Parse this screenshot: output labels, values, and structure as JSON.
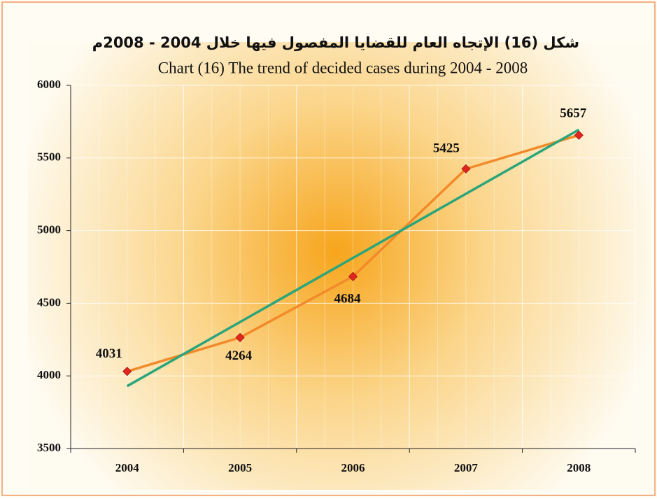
{
  "chart_data": {
    "type": "line",
    "title_ar": "شكل (16) الإتجاه العام للقضايا المفصول فيها خلال 2004 - 2008م",
    "title": "Chart (16) The trend of decided cases during 2004 - 2008",
    "categories": [
      "2004",
      "2005",
      "2006",
      "2007",
      "2008"
    ],
    "values": [
      4031,
      4264,
      4684,
      5425,
      5657
    ],
    "color": "#f28a2a",
    "marker_color": "#e0261e",
    "trendline": {
      "type": "linear",
      "color": "#2ba57a"
    },
    "ylim": [
      3500,
      6000
    ],
    "yticks": [
      3500,
      4000,
      4500,
      5000,
      5500,
      6000
    ],
    "grid": true
  }
}
